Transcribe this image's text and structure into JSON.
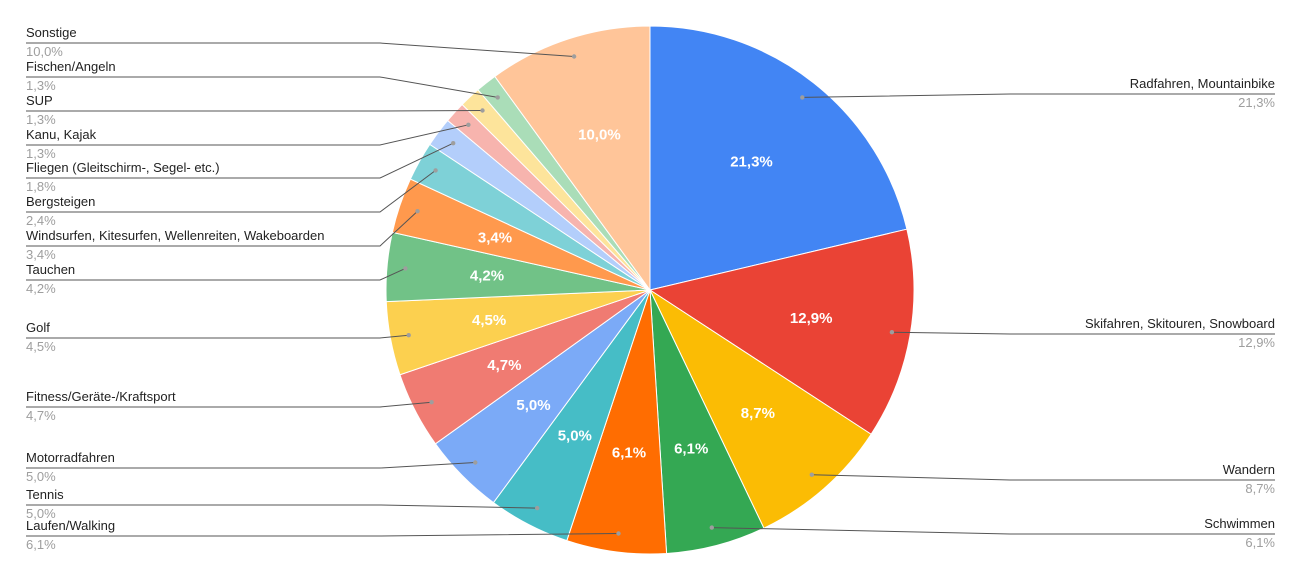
{
  "chart_data": {
    "type": "pie",
    "title": "",
    "legend": "labels-with-leader-lines",
    "slices": [
      {
        "label": "Radfahren, Mountainbike",
        "value": 21.3,
        "pct": "21,3%",
        "color": "#4285F4",
        "side": "right",
        "inner": "21,3%"
      },
      {
        "label": "Skifahren, Skitouren, Snowboard",
        "value": 12.9,
        "pct": "12,9%",
        "color": "#EA4335",
        "side": "right",
        "inner": "12,9%"
      },
      {
        "label": "Wandern",
        "value": 8.7,
        "pct": "8,7%",
        "color": "#FBBC04",
        "side": "right",
        "inner": "8,7%"
      },
      {
        "label": "Schwimmen",
        "value": 6.1,
        "pct": "6,1%",
        "color": "#34A853",
        "side": "right",
        "inner": "6,1%"
      },
      {
        "label": "Laufen/Walking",
        "value": 6.1,
        "pct": "6,1%",
        "color": "#FF6D01",
        "side": "left",
        "inner": "6,1%"
      },
      {
        "label": "Tennis",
        "value": 5.0,
        "pct": "5,0%",
        "color": "#46BDC6",
        "side": "left",
        "inner": "5,0%"
      },
      {
        "label": "Motorradfahren",
        "value": 5.0,
        "pct": "5,0%",
        "color": "#7BAAF7",
        "side": "left",
        "inner": "5,0%"
      },
      {
        "label": "Fitness/Geräte-/Kraftsport",
        "value": 4.7,
        "pct": "4,7%",
        "color": "#F07B72",
        "side": "left",
        "inner": "4,7%"
      },
      {
        "label": "Golf",
        "value": 4.5,
        "pct": "4,5%",
        "color": "#FCD04F",
        "side": "left",
        "inner": "4,5%"
      },
      {
        "label": "Tauchen",
        "value": 4.2,
        "pct": "4,2%",
        "color": "#71C287",
        "side": "left",
        "inner": "4,2%"
      },
      {
        "label": "Windsurfen, Kitesurfen, Wellenreiten, Wakeboarden",
        "value": 3.4,
        "pct": "3,4%",
        "color": "#FF994D",
        "side": "left",
        "inner": "3,4%"
      },
      {
        "label": "Bergsteigen",
        "value": 2.4,
        "pct": "2,4%",
        "color": "#7ED1D7",
        "side": "left",
        "inner": ""
      },
      {
        "label": "Fliegen (Gleitschirm-, Segel- etc.)",
        "value": 1.8,
        "pct": "1,8%",
        "color": "#B3CEFB",
        "side": "left",
        "inner": ""
      },
      {
        "label": "Kanu, Kajak",
        "value": 1.3,
        "pct": "1,3%",
        "color": "#F7B4AE",
        "side": "left",
        "inner": ""
      },
      {
        "label": "SUP",
        "value": 1.3,
        "pct": "1,3%",
        "color": "#FDE49B",
        "side": "left",
        "inner": ""
      },
      {
        "label": "Fischen/Angeln",
        "value": 1.3,
        "pct": "1,3%",
        "color": "#AADDB8",
        "side": "left",
        "inner": ""
      },
      {
        "label": "Sonstige",
        "value": 10.0,
        "pct": "10,0%",
        "color": "#FFC599",
        "side": "left",
        "inner": "10,0%"
      }
    ]
  }
}
